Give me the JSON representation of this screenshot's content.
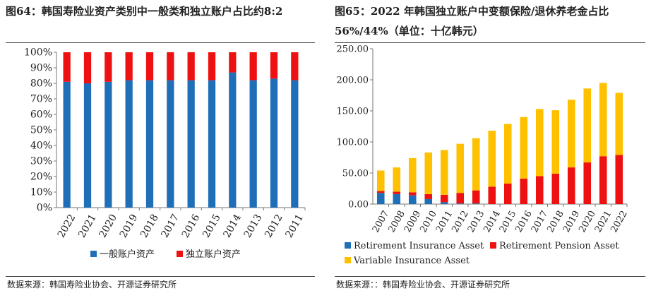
{
  "left": {
    "title": "图64：韩国寿险业资产类别中一般类和独立账户占比约8:2",
    "source": "数据来源：韩国寿险业协会、开源证券研究所",
    "chart_data": {
      "type": "bar",
      "stacked": true,
      "categories": [
        "2022",
        "2021",
        "2020",
        "2019",
        "2018",
        "2017",
        "2016",
        "2015",
        "2014",
        "2013",
        "2012",
        "2011"
      ],
      "series": [
        {
          "name": "一般账户资产",
          "color": "#1f6fb8",
          "values": [
            81,
            80,
            81,
            82,
            82,
            82,
            82,
            82,
            87,
            82,
            83,
            82
          ]
        },
        {
          "name": "独立账户资产",
          "color": "#ee1111",
          "values": [
            19,
            20,
            19,
            18,
            18,
            18,
            18,
            18,
            13,
            18,
            17,
            18
          ]
        }
      ],
      "yticks": [
        "0%",
        "10%",
        "20%",
        "30%",
        "40%",
        "50%",
        "60%",
        "70%",
        "80%",
        "90%",
        "100%"
      ],
      "ylim": [
        0,
        100
      ],
      "legend_position": "bottom"
    }
  },
  "right": {
    "title": "图65：2022 年韩国独立账户中变额保险/退休养老金占比 56%/44%（单位：十亿韩元）",
    "source": "数据来源：：韩国寿险业协会、开源证券研究所",
    "chart_data": {
      "type": "bar",
      "stacked": true,
      "categories": [
        "2007",
        "2008",
        "2009",
        "2010",
        "2011",
        "2012",
        "2013",
        "2014",
        "2015",
        "2016",
        "2017",
        "2018",
        "2019",
        "2020",
        "2021",
        "2022"
      ],
      "series": [
        {
          "name": "Retirement Insurance Asset",
          "color": "#1f6fb8",
          "values": [
            18,
            16,
            14,
            8,
            3,
            1,
            1,
            0,
            0,
            0,
            0,
            0,
            0,
            0,
            0,
            0
          ]
        },
        {
          "name": "Retirement Pension Asset",
          "color": "#ee1111",
          "values": [
            3,
            4,
            5,
            8,
            12,
            17,
            21,
            28,
            33,
            41,
            45,
            49,
            59,
            67,
            77,
            79
          ]
        },
        {
          "name": "Variable Insurance Asset",
          "color": "#ffc000",
          "values": [
            33,
            39,
            55,
            67,
            72,
            79,
            84,
            90,
            96,
            99,
            108,
            102,
            109,
            119,
            118,
            100
          ]
        }
      ],
      "yticks": [
        "0.00",
        "50.00",
        "100.00",
        "150.00",
        "200.00",
        "250.00"
      ],
      "ylim": [
        0,
        250
      ],
      "legend_position": "bottom"
    }
  }
}
